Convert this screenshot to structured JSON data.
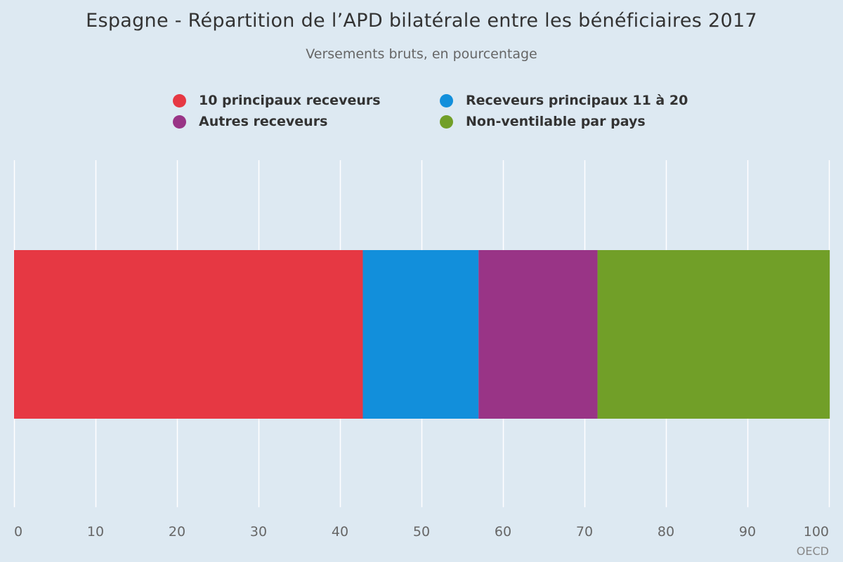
{
  "title": "Espagne - Répartition de l’APD bilatérale entre les bénéficiaires 2017",
  "subtitle": "Versements bruts, en pourcentage",
  "credit": "OECD",
  "chart_data": {
    "type": "bar",
    "orientation": "horizontal",
    "stacked": true,
    "title": "Espagne - Répartition de l’APD bilatérale entre les bénéficiaires 2017",
    "subtitle": "Versements bruts, en pourcentage",
    "categories": [
      ""
    ],
    "series": [
      {
        "name": "10 principaux receveurs",
        "color": "#e63843",
        "values": [
          42.8
        ]
      },
      {
        "name": "Receveurs principaux 11 à 20",
        "color": "#128fdb",
        "values": [
          14.2
        ]
      },
      {
        "name": "Autres receveurs",
        "color": "#993486",
        "values": [
          14.6
        ]
      },
      {
        "name": "Non-ventilable par pays",
        "color": "#719f28",
        "values": [
          28.5
        ]
      }
    ],
    "xlim": [
      0,
      100
    ],
    "xticks": [
      0,
      10,
      20,
      30,
      40,
      50,
      60,
      70,
      80,
      90,
      100
    ],
    "grid": true,
    "legend_position": "top"
  }
}
